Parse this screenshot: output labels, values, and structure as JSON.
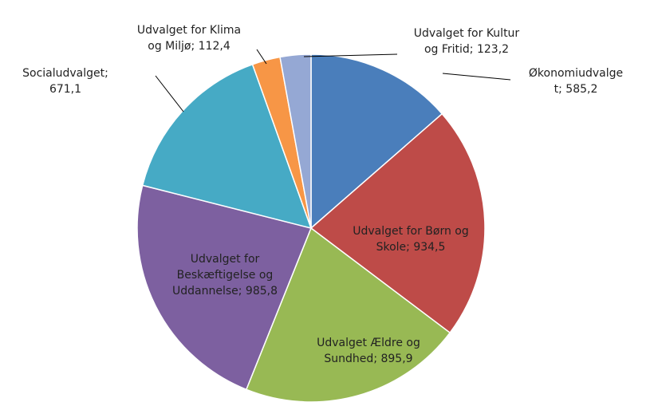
{
  "chart_data": {
    "type": "pie",
    "categories": [
      "Økonomiudvalget",
      "Udvalget for Børn og Skole",
      "Udvalget Ældre og Sundhed",
      "Udvalget for Beskæftigelse og Uddannelse",
      "Socialudvalget",
      "Udvalget for Klima og Miljø",
      "Udvalget for Kultur og Fritid"
    ],
    "values": [
      585.2,
      934.5,
      895.9,
      985.8,
      671.1,
      112.4,
      123.2
    ],
    "value_labels": [
      "585,2",
      "934,5",
      "895,9",
      "985,8",
      "671,1",
      "112,4",
      "123,2"
    ],
    "label_separator": ";",
    "colors": [
      "#4a7ebb",
      "#be4b48",
      "#98b954",
      "#7d60a0",
      "#46aac5",
      "#f79646",
      "#95a8d4"
    ]
  }
}
